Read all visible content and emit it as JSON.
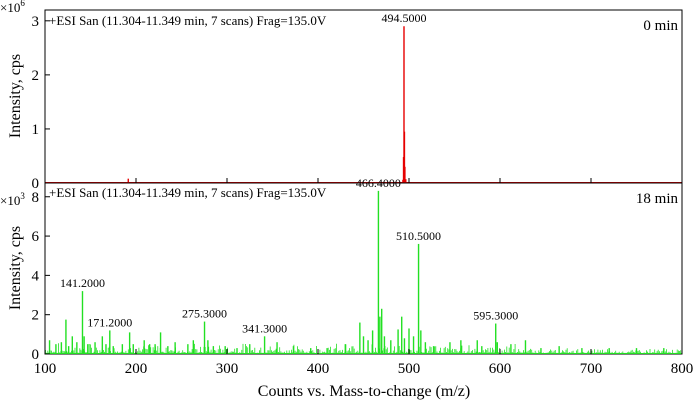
{
  "chart_data": [
    {
      "type": "line",
      "panel": "top",
      "scan_info": "+ESI San (11.304-11.349 min, 7 scans) Frag=135.0V",
      "time_label": "0 min",
      "color": "#e60000",
      "xlim": [
        100,
        800
      ],
      "ylim": [
        0,
        3.2
      ],
      "y_multiplier": {
        "base": "×10",
        "exp": "6"
      },
      "ylabel": "Intensity, cps",
      "y_ticks": [
        0,
        1,
        2,
        3
      ],
      "peaks": [
        [
          191.5,
          0.08
        ],
        [
          493.3,
          0.06
        ],
        [
          494.0,
          0.48
        ],
        [
          494.5,
          2.9
        ],
        [
          495.0,
          0.95
        ],
        [
          495.5,
          0.3
        ],
        [
          496.5,
          0.07
        ]
      ],
      "peak_labels": [
        {
          "mz": 494.5,
          "y": 2.9,
          "text": "494.5000"
        }
      ]
    },
    {
      "type": "line",
      "panel": "bottom",
      "scan_info": "+ESI San (11.304-11.349 min, 7 scans) Frag=135.0V",
      "time_label": "18 min",
      "color": "#22e022",
      "xlim": [
        100,
        800
      ],
      "ylim": [
        0,
        8.7
      ],
      "y_multiplier": {
        "base": "×10",
        "exp": "3"
      },
      "ylabel": "Intensity, cps",
      "y_ticks": [
        0,
        2,
        4,
        6,
        8
      ],
      "peaks": [
        [
          105,
          0.7
        ],
        [
          112,
          0.5
        ],
        [
          118,
          0.6
        ],
        [
          123,
          1.75
        ],
        [
          126,
          0.4
        ],
        [
          130,
          0.9
        ],
        [
          135,
          0.6
        ],
        [
          141.2,
          3.2
        ],
        [
          143,
          0.9
        ],
        [
          147,
          0.5
        ],
        [
          155,
          0.6
        ],
        [
          163,
          0.9
        ],
        [
          167,
          0.5
        ],
        [
          171.2,
          1.2
        ],
        [
          175,
          0.4
        ],
        [
          185,
          0.5
        ],
        [
          193,
          1.1
        ],
        [
          197,
          0.5
        ],
        [
          209,
          0.7
        ],
        [
          215,
          0.5
        ],
        [
          221,
          0.5
        ],
        [
          227,
          1.1
        ],
        [
          235,
          0.4
        ],
        [
          243,
          0.6
        ],
        [
          257,
          0.5
        ],
        [
          263,
          0.7
        ],
        [
          275.3,
          1.65
        ],
        [
          279,
          0.7
        ],
        [
          285,
          0.4
        ],
        [
          298,
          0.4
        ],
        [
          311,
          0.3
        ],
        [
          325,
          0.5
        ],
        [
          341.3,
          0.9
        ],
        [
          355,
          0.6
        ],
        [
          373,
          0.4
        ],
        [
          392,
          0.3
        ],
        [
          410,
          0.3
        ],
        [
          430,
          0.5
        ],
        [
          446,
          1.6
        ],
        [
          450,
          0.9
        ],
        [
          455,
          0.7
        ],
        [
          460,
          1.2
        ],
        [
          466.4,
          8.3
        ],
        [
          468,
          1.9
        ],
        [
          470,
          2.3
        ],
        [
          473,
          0.9
        ],
        [
          480,
          0.7
        ],
        [
          488,
          1.25
        ],
        [
          492,
          1.9
        ],
        [
          495,
          0.8
        ],
        [
          500,
          1.3
        ],
        [
          505,
          0.9
        ],
        [
          510.5,
          5.6
        ],
        [
          513,
          1.2
        ],
        [
          518,
          0.6
        ],
        [
          527,
          0.4
        ],
        [
          545,
          0.6
        ],
        [
          557,
          0.7
        ],
        [
          575,
          0.7
        ],
        [
          580,
          0.4
        ],
        [
          595.3,
          1.55
        ],
        [
          597,
          0.6
        ],
        [
          612,
          0.5
        ],
        [
          628,
          0.7
        ],
        [
          645,
          0.3
        ],
        [
          665,
          0.4
        ],
        [
          690,
          0.3
        ],
        [
          720,
          0.3
        ],
        [
          750,
          0.3
        ],
        [
          780,
          0.3
        ]
      ],
      "peak_labels": [
        {
          "mz": 141.2,
          "y": 3.2,
          "text": "141.2000"
        },
        {
          "mz": 171.2,
          "y": 1.2,
          "text": "171.2000"
        },
        {
          "mz": 275.3,
          "y": 1.65,
          "text": "275.3000"
        },
        {
          "mz": 341.3,
          "y": 0.9,
          "text": "341.3000"
        },
        {
          "mz": 466.4,
          "y": 8.3,
          "text": "466.4000"
        },
        {
          "mz": 510.5,
          "y": 5.6,
          "text": "510.5000"
        },
        {
          "mz": 595.3,
          "y": 1.55,
          "text": "595.3000"
        }
      ]
    }
  ],
  "x_axis": {
    "label": "Counts vs. Mass-to-change (m/z)",
    "ticks": [
      100,
      200,
      300,
      400,
      500,
      600,
      700,
      800
    ]
  }
}
